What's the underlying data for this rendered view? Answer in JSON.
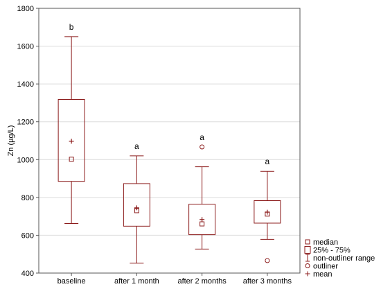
{
  "chart_data": {
    "type": "box",
    "ylabel": "Zn (µg/L)",
    "ylim": [
      400,
      1800
    ],
    "yticks": [
      400,
      600,
      800,
      1000,
      1200,
      1400,
      1600,
      1800
    ],
    "grid": true,
    "categories": [
      "baseline",
      "after 1 month",
      "after 2 months",
      "after 3 months"
    ],
    "boxes": [
      {
        "category": "baseline",
        "min": 662,
        "q1": 885,
        "median": 1002,
        "q3": 1318,
        "max": 1650,
        "mean": 1097,
        "outliers": [],
        "letter": "b"
      },
      {
        "category": "after 1 month",
        "min": 452,
        "q1": 648,
        "median": 730,
        "q3": 873,
        "max": 1020,
        "mean": 745,
        "outliers": [],
        "letter": "a"
      },
      {
        "category": "after 2 months",
        "min": 527,
        "q1": 603,
        "median": 660,
        "q3": 764,
        "max": 962,
        "mean": 683,
        "outliers": [
          1067
        ],
        "letter": "a"
      },
      {
        "category": "after 3 months",
        "min": 578,
        "q1": 664,
        "median": 712,
        "q3": 783,
        "max": 938,
        "mean": 722,
        "outliers": [
          466
        ],
        "letter": "a"
      }
    ],
    "legend": {
      "placement": "bottom-right",
      "items": [
        {
          "symbol": "square",
          "label": "median"
        },
        {
          "symbol": "box",
          "label": "25% - 75%"
        },
        {
          "symbol": "whisker",
          "label": "non-outliner range"
        },
        {
          "symbol": "circle",
          "label": "outliner"
        },
        {
          "symbol": "plus",
          "label": "mean"
        }
      ]
    },
    "color": "#8b1a1a"
  }
}
